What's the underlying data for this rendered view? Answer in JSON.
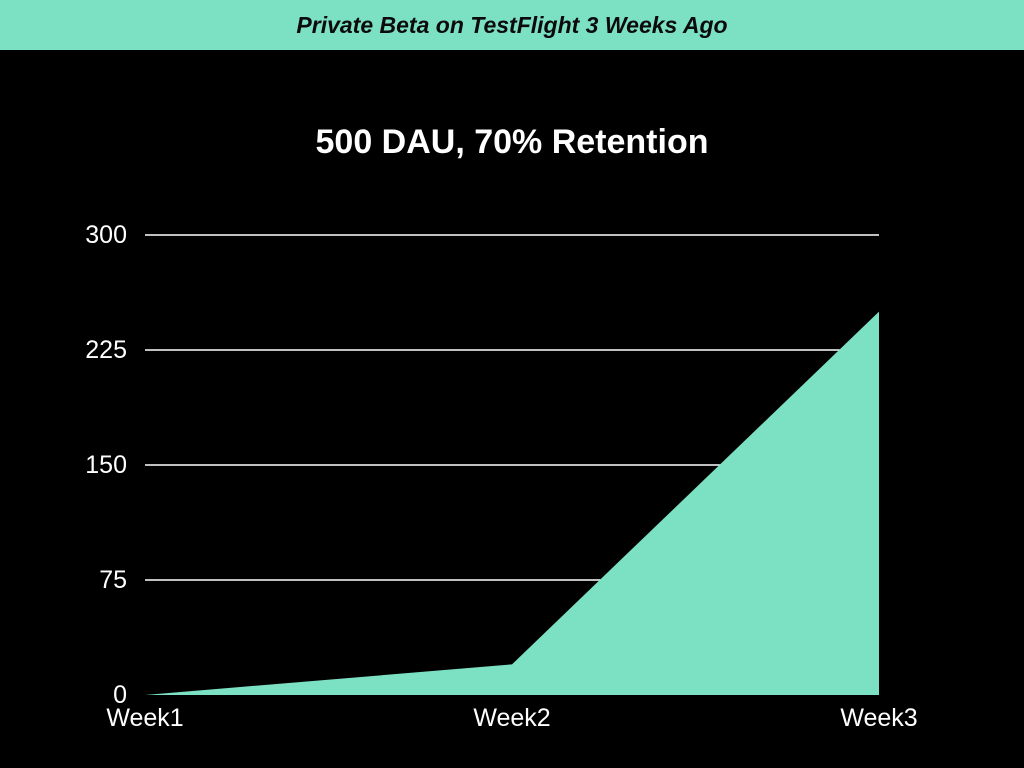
{
  "header": {
    "title": "Private Beta on TestFlight 3 Weeks Ago",
    "background_color": "#7CE0C2",
    "text_color": "#0B0B0B"
  },
  "chart_data": {
    "type": "area",
    "title": "500 DAU, 70% Retention",
    "categories": [
      "Week1",
      "Week2",
      "Week3"
    ],
    "values": [
      0,
      20,
      250
    ],
    "yticks": [
      300,
      225,
      150,
      75,
      0
    ],
    "gridline_values": [
      300,
      225,
      150,
      75
    ],
    "ylim": [
      0,
      300
    ],
    "xlabel": "",
    "ylabel": "",
    "legend": "none",
    "grid": "horizontal-only",
    "colors": {
      "area_fill": "#7CE0C2",
      "gridline": "#FFFFFF",
      "tick_text": "#FFFFFF",
      "background": "#000000",
      "title_text": "#FFFFFF"
    }
  }
}
